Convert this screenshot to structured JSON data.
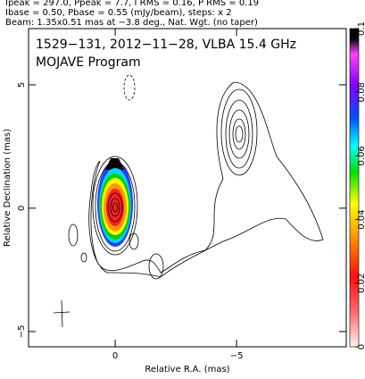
{
  "chart_data": {
    "type": "contour",
    "header": [
      "Ipeak = 297.0, Ppeak = 7.7, I RMS = 0.16, P RMS = 0.19",
      "Ibase = 0.50, Pbase = 0.55 (mJy/beam), steps: x 2",
      "Beam: 1.35x0.51 mas at −3.8 deg., Nat. Wgt. (no taper)"
    ],
    "title": "1529−131, 2012−11−28, VLBA 15.4 GHz",
    "subtitle": "MOJAVE Program",
    "x_label": "Relative R.A. (mas)",
    "y_label": "Relative Declination (mas)",
    "xlim": [
      3.57,
      -9.52
    ],
    "xticks": [
      0,
      {
        "value": -5,
        "label": "−5"
      }
    ],
    "ylim": [
      -5.62,
      7.28
    ],
    "yticks": [
      {
        "value": -5,
        "label": "−5"
      },
      0,
      5
    ],
    "colorbar_lim": [
      0,
      0.1
    ],
    "colorbar_ticks": [
      0,
      0.02,
      0.04,
      0.06,
      0.08,
      0.1
    ]
  }
}
